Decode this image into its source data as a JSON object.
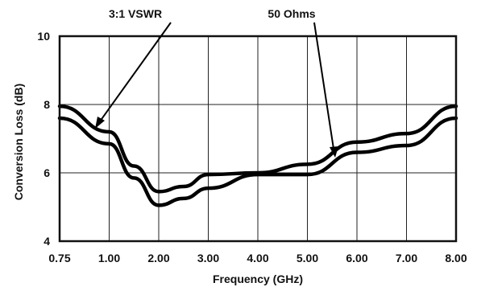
{
  "chart_data": {
    "type": "line",
    "title": "",
    "xlabel": "Frequency (GHz)",
    "ylabel": "Conversion Loss (dB)",
    "x_tick_labels": [
      "0.75",
      "1.00",
      "2.00",
      "3.00",
      "4.00",
      "5.00",
      "6.00",
      "7.00",
      "8.00"
    ],
    "y_tick_labels": [
      "4",
      "6",
      "8",
      "10"
    ],
    "y_ticks": [
      4,
      6,
      8,
      10
    ],
    "ylim": [
      4,
      10
    ],
    "grid": true,
    "series": [
      {
        "name": "3:1 VSWR",
        "x": [
          "0.75",
          "1.00",
          "1.50",
          "2.00",
          "2.50",
          "3.00",
          "4.00",
          "5.00",
          "6.00",
          "7.00",
          "8.00"
        ],
        "y": [
          7.95,
          7.2,
          6.2,
          5.45,
          5.6,
          5.95,
          6.0,
          6.25,
          6.9,
          7.15,
          7.95
        ]
      },
      {
        "name": "50 Ohms",
        "x": [
          "0.75",
          "1.00",
          "1.50",
          "2.00",
          "2.50",
          "3.00",
          "4.00",
          "5.00",
          "6.00",
          "7.00",
          "8.00"
        ],
        "y": [
          7.6,
          6.85,
          5.85,
          5.05,
          5.25,
          5.55,
          5.95,
          5.95,
          6.6,
          6.8,
          7.6
        ]
      }
    ],
    "annotations": [
      {
        "text": "3:1 VSWR",
        "points_to": "3:1 VSWR"
      },
      {
        "text": "50 Ohms",
        "points_to": "50 Ohms"
      }
    ]
  }
}
